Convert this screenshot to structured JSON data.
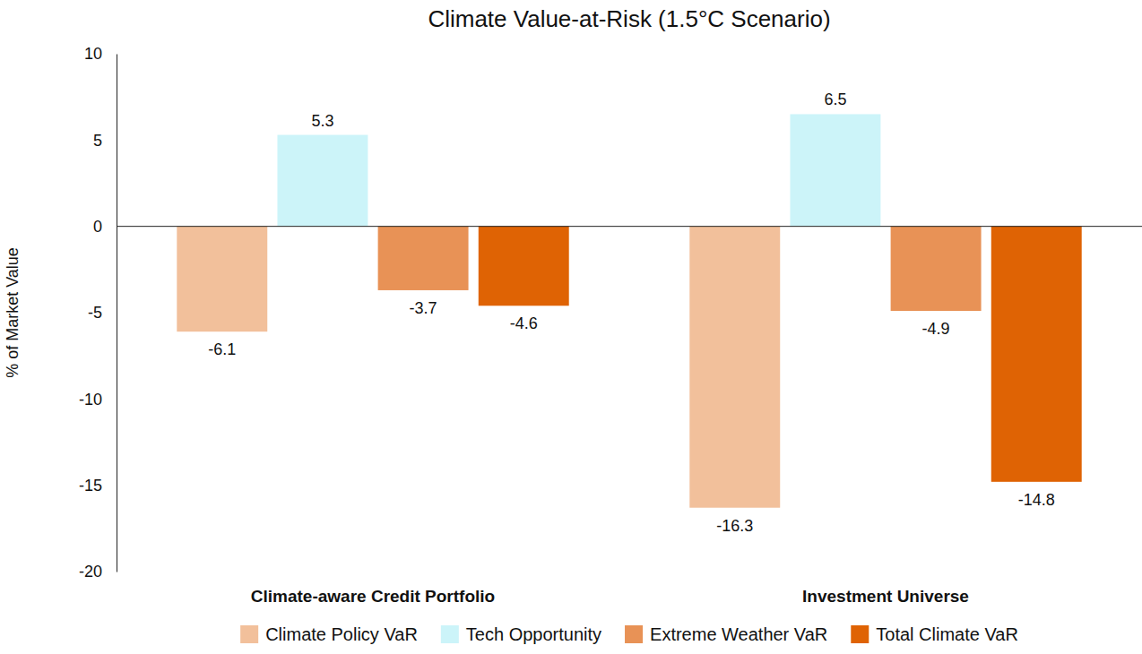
{
  "chart_data": {
    "type": "bar",
    "title": "Climate Value-at-Risk (1.5°C Scenario)",
    "y_label": "% of Market Value",
    "categories": [
      "Climate-aware Credit Portfolio",
      "Investment Universe"
    ],
    "series": [
      {
        "name": "Climate Policy VaR",
        "color": "#f2c09b",
        "values": [
          -6.1,
          -16.3
        ]
      },
      {
        "name": "Tech Opportunity",
        "color": "#ccf4f9",
        "values": [
          5.3,
          6.5
        ]
      },
      {
        "name": "Extreme Weather VaR",
        "color": "#e89256",
        "values": [
          -3.7,
          -4.9
        ]
      },
      {
        "name": "Total Climate VaR",
        "color": "#df6304",
        "values": [
          -4.6,
          -14.8
        ]
      }
    ],
    "ylim": [
      -20,
      10
    ],
    "yticks": [
      -20,
      -15,
      -10,
      -5,
      0,
      5,
      10
    ],
    "grid": false,
    "legend": "bottom",
    "data_labels": true
  }
}
